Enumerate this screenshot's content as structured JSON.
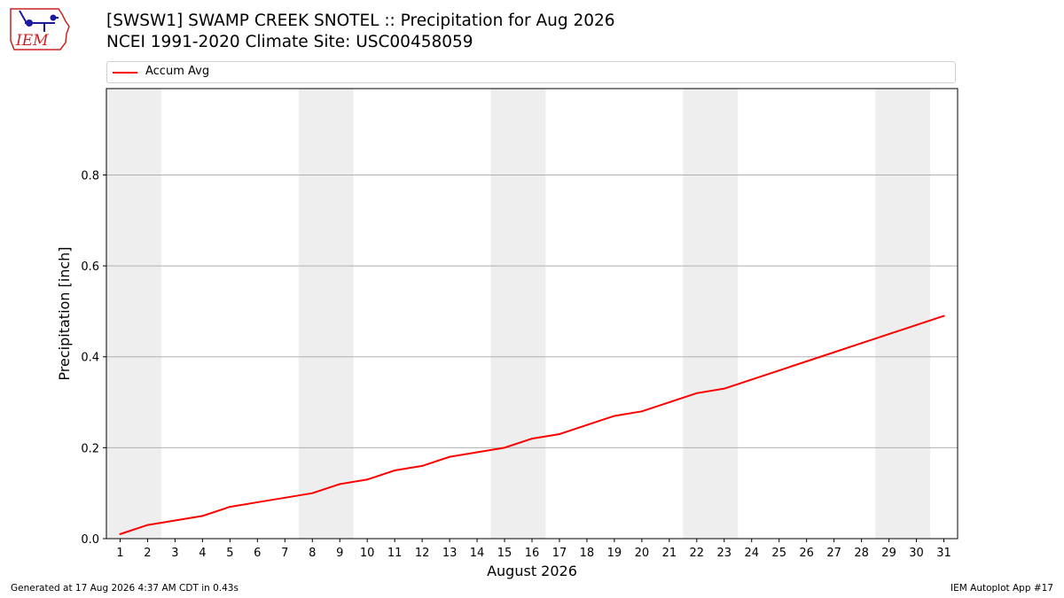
{
  "logo": {
    "text": "IEM"
  },
  "title": {
    "line1": "[SWSW1] SWAMP CREEK SNOTEL :: Precipitation for Aug 2026",
    "line2": "NCEI 1991-2020 Climate Site: USC00458059"
  },
  "colors": {
    "series": "#ff0000",
    "weekend_band": "#eeeeee",
    "grid": "#b0b0b0",
    "logo_red": "#cc2222",
    "logo_blue": "#1a1aa0"
  },
  "chart_data": {
    "type": "line",
    "title": "[SWSW1] SWAMP CREEK SNOTEL :: Precipitation for Aug 2026",
    "xlabel": "August 2026",
    "ylabel": "Precipitation [inch]",
    "xlim": [
      0.5,
      31.5
    ],
    "ylim": [
      0,
      0.99
    ],
    "yticks": [
      0.0,
      0.2,
      0.4,
      0.6,
      0.8
    ],
    "ytick_labels": [
      "0.0",
      "0.2",
      "0.4",
      "0.6",
      "0.8"
    ],
    "x": [
      1,
      2,
      3,
      4,
      5,
      6,
      7,
      8,
      9,
      10,
      11,
      12,
      13,
      14,
      15,
      16,
      17,
      18,
      19,
      20,
      21,
      22,
      23,
      24,
      25,
      26,
      27,
      28,
      29,
      30,
      31
    ],
    "xtick_labels": [
      "1",
      "2",
      "3",
      "4",
      "5",
      "6",
      "7",
      "8",
      "9",
      "10",
      "11",
      "12",
      "13",
      "14",
      "15",
      "16",
      "17",
      "18",
      "19",
      "20",
      "21",
      "22",
      "23",
      "24",
      "25",
      "26",
      "27",
      "28",
      "29",
      "30",
      "31"
    ],
    "grid": "horizontal",
    "legend_position": "top",
    "shaded_weekends": [
      [
        1,
        2
      ],
      [
        8,
        9
      ],
      [
        15,
        16
      ],
      [
        22,
        23
      ],
      [
        29,
        30
      ]
    ],
    "series": [
      {
        "name": "Accum Avg",
        "values": [
          0.01,
          0.03,
          0.04,
          0.05,
          0.07,
          0.08,
          0.09,
          0.1,
          0.12,
          0.13,
          0.15,
          0.16,
          0.18,
          0.19,
          0.2,
          0.22,
          0.23,
          0.25,
          0.27,
          0.28,
          0.3,
          0.32,
          0.33,
          0.35,
          0.37,
          0.39,
          0.41,
          0.43,
          0.45,
          0.47,
          0.49
        ]
      }
    ]
  },
  "footer": {
    "left": "Generated at 17 Aug 2026 4:37 AM CDT in 0.43s",
    "right": "IEM Autoplot App #17"
  }
}
